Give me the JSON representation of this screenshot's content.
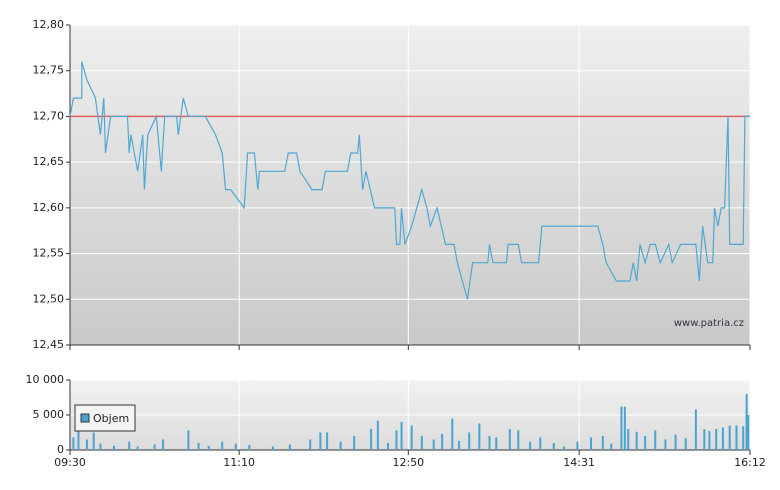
{
  "chart_data": [
    {
      "type": "line",
      "watermark": "www.patria.cz",
      "color": "#4fa8d4",
      "reference_line": {
        "value": 12.7,
        "color": "#e06060"
      },
      "x": [
        570,
        572,
        577,
        577,
        580,
        585,
        588,
        590,
        591,
        594,
        604,
        605,
        606,
        610,
        613,
        614,
        616,
        621,
        624,
        626,
        633,
        634,
        637,
        640,
        650,
        656,
        660,
        662,
        665,
        673,
        675,
        679,
        681,
        682,
        697,
        699,
        704,
        706,
        713,
        719,
        721,
        734,
        736,
        740,
        741,
        743,
        745,
        750,
        762,
        763,
        765,
        766,
        768,
        772,
        775,
        778,
        781,
        783,
        787,
        792,
        797,
        799,
        802,
        805,
        808,
        817,
        818,
        820,
        828,
        829,
        835,
        837,
        847,
        849,
        882,
        885,
        887,
        893,
        901,
        903,
        905,
        907,
        910,
        913,
        916,
        919,
        924,
        926,
        931,
        940,
        942,
        944,
        947,
        950,
        951,
        953,
        955,
        957,
        959,
        960,
        968,
        969,
        972
      ],
      "values": [
        12.7,
        12.72,
        12.72,
        12.76,
        12.74,
        12.72,
        12.68,
        12.72,
        12.66,
        12.7,
        12.7,
        12.66,
        12.68,
        12.64,
        12.68,
        12.62,
        12.68,
        12.7,
        12.64,
        12.7,
        12.7,
        12.68,
        12.72,
        12.7,
        12.7,
        12.68,
        12.66,
        12.62,
        12.62,
        12.6,
        12.66,
        12.66,
        12.62,
        12.64,
        12.64,
        12.66,
        12.66,
        12.64,
        12.62,
        12.62,
        12.64,
        12.64,
        12.66,
        12.66,
        12.68,
        12.62,
        12.64,
        12.6,
        12.6,
        12.56,
        12.56,
        12.6,
        12.56,
        12.58,
        12.6,
        12.62,
        12.6,
        12.58,
        12.6,
        12.56,
        12.56,
        12.54,
        12.52,
        12.5,
        12.54,
        12.54,
        12.56,
        12.54,
        12.54,
        12.56,
        12.56,
        12.54,
        12.54,
        12.58,
        12.58,
        12.56,
        12.54,
        12.52,
        12.52,
        12.54,
        12.52,
        12.56,
        12.54,
        12.56,
        12.56,
        12.54,
        12.56,
        12.54,
        12.56,
        12.56,
        12.52,
        12.58,
        12.54,
        12.54,
        12.6,
        12.58,
        12.6,
        12.6,
        12.7,
        12.56,
        12.56,
        12.7,
        12.7
      ],
      "xlim": [
        570,
        972
      ],
      "ylim": [
        12.45,
        12.8
      ],
      "yticks": [
        {
          "value": 12.45,
          "label": "12,45"
        },
        {
          "value": 12.5,
          "label": "12,50"
        },
        {
          "value": 12.55,
          "label": "12,55"
        },
        {
          "value": 12.6,
          "label": "12,60"
        },
        {
          "value": 12.65,
          "label": "12,65"
        },
        {
          "value": 12.7,
          "label": "12,70"
        },
        {
          "value": 12.75,
          "label": "12,75"
        },
        {
          "value": 12.8,
          "label": "12,80"
        }
      ],
      "grid": true
    },
    {
      "type": "bar",
      "legend": "bottom-left",
      "x": [
        572,
        575,
        580,
        584,
        588,
        596,
        605,
        610,
        620,
        625,
        640,
        646,
        652,
        660,
        668,
        676,
        690,
        700,
        712,
        718,
        722,
        730,
        738,
        748,
        752,
        758,
        763,
        766,
        772,
        778,
        785,
        790,
        796,
        800,
        806,
        812,
        818,
        822,
        830,
        835,
        842,
        848,
        856,
        862,
        870,
        878,
        885,
        890,
        896,
        898,
        900,
        905,
        910,
        916,
        922,
        928,
        934,
        940,
        945,
        948,
        952,
        956,
        960,
        964,
        968,
        970,
        971
      ],
      "series": [
        {
          "name": "Objem",
          "color": "#4aa3cf",
          "values": [
            1800,
            3000,
            1500,
            2500,
            900,
            600,
            1200,
            500,
            800,
            1500,
            2800,
            1000,
            600,
            1200,
            900,
            700,
            500,
            800,
            1500,
            2500,
            2500,
            1200,
            2000,
            3000,
            4200,
            1000,
            2800,
            4000,
            3500,
            2000,
            1500,
            2300,
            4500,
            1300,
            2500,
            3800,
            2000,
            1800,
            3000,
            2800,
            1200,
            1800,
            1000,
            500,
            1200,
            1800,
            2000,
            900,
            6200,
            6200,
            3000,
            2600,
            2000,
            2800,
            1500,
            2200,
            1700,
            5800,
            3000,
            2700,
            3000,
            3200,
            3500,
            3500,
            3400,
            8000,
            5000
          ]
        }
      ],
      "xlim": [
        570,
        972
      ],
      "xticks": [
        {
          "value": 570,
          "label": "09:30"
        },
        {
          "value": 670,
          "label": "11:10"
        },
        {
          "value": 770,
          "label": "12:50"
        },
        {
          "value": 871,
          "label": "14:31"
        },
        {
          "value": 972,
          "label": "16:12"
        }
      ],
      "ylim": [
        0,
        10000
      ],
      "yticks": [
        0,
        {
          "value": 5000,
          "label": "5 000"
        },
        {
          "value": 10000,
          "label": "10 000"
        }
      ],
      "grid": true
    }
  ]
}
